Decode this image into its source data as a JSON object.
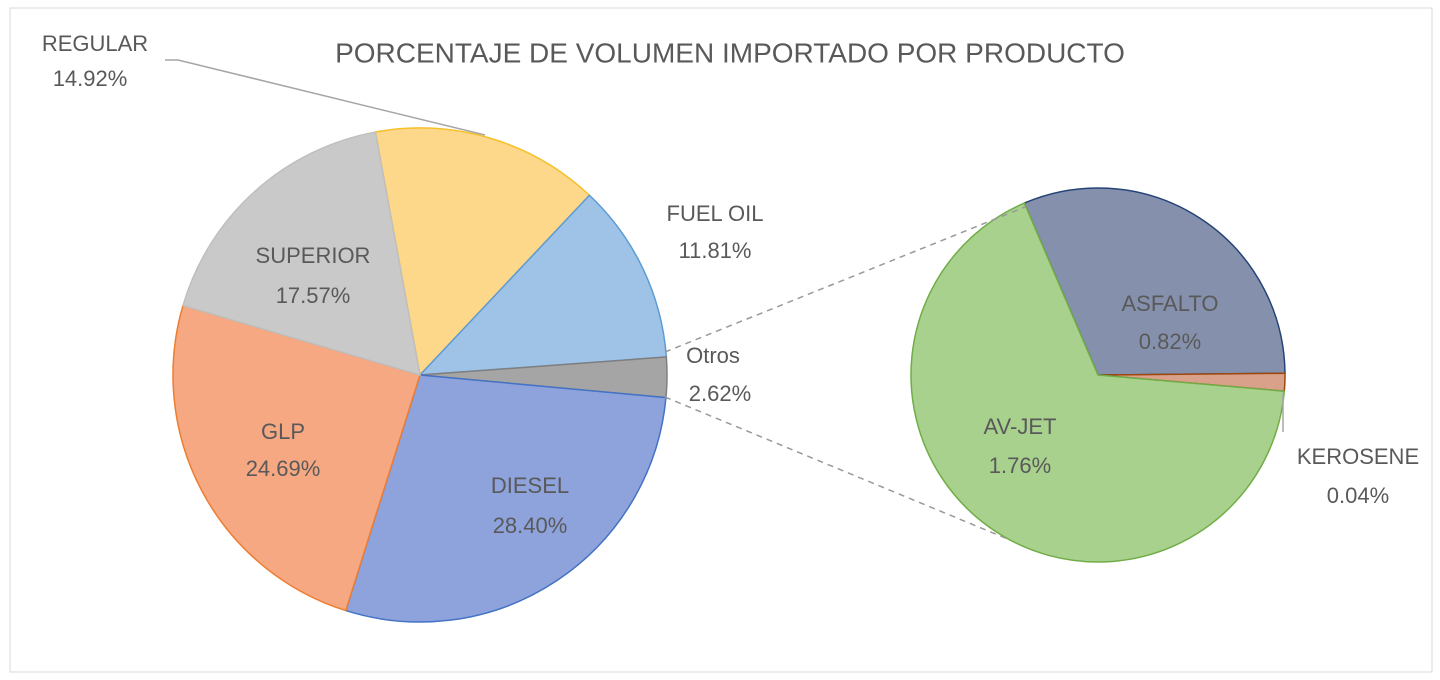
{
  "chart_data": [
    {
      "type": "pie",
      "title": "PORCENTAJE DE VOLUMEN IMPORTADO POR PRODUCTO",
      "categories": [
        "REGULAR",
        "FUEL OIL",
        "Otros",
        "DIESEL",
        "GLP",
        "SUPERIOR"
      ],
      "values": [
        14.92,
        11.81,
        2.62,
        28.4,
        24.69,
        17.57
      ],
      "value_labels": [
        "14.92%",
        "11.81%",
        "2.62%",
        "28.40%",
        "24.69%",
        "17.57%"
      ],
      "colors": [
        "#fdd78a",
        "#9fc3e7",
        "#a5a5a5",
        "#8ea3dc",
        "#f5a882",
        "#c9c9c9"
      ],
      "edge_colors": [
        "#f5c028",
        "#5b9bd5",
        "#7f7f7f",
        "#4472c4",
        "#ed7d31",
        "#bfbfbf"
      ]
    },
    {
      "type": "pie",
      "categories": [
        "ASFALTO",
        "KEROSENE",
        "AV-JET"
      ],
      "values": [
        0.82,
        0.04,
        1.76
      ],
      "value_labels": [
        "0.82%",
        "0.04%",
        "1.76%"
      ],
      "colors": [
        "#8591ac",
        "#d9a08a",
        "#a9d18e"
      ],
      "edge_colors": [
        "#264478",
        "#9e480e",
        "#70ad47"
      ]
    }
  ]
}
